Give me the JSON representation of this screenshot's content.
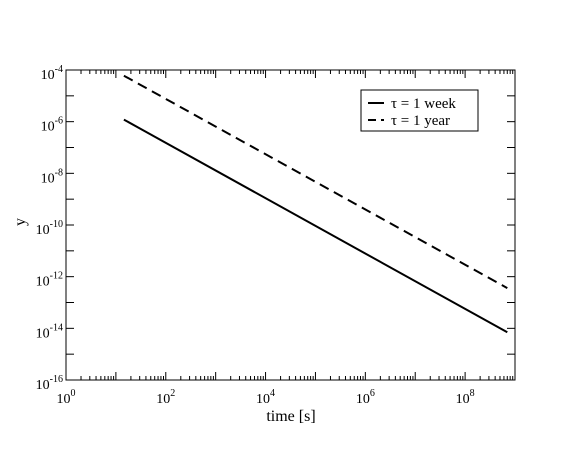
{
  "chart_data": {
    "type": "line",
    "title": "",
    "xlabel": "time [s]",
    "ylabel": "y",
    "xscale": "log",
    "yscale": "log",
    "xlim": [
      1,
      1000000000
    ],
    "ylim": [
      1e-16,
      0.0001
    ],
    "grid": false,
    "legend_position": "top-right",
    "xticks": [
      {
        "base": "10",
        "exp": "0",
        "value": 1
      },
      {
        "base": "10",
        "exp": "2",
        "value": 100
      },
      {
        "base": "10",
        "exp": "4",
        "value": 10000
      },
      {
        "base": "10",
        "exp": "6",
        "value": 1000000
      },
      {
        "base": "10",
        "exp": "8",
        "value": 100000000
      }
    ],
    "yticks": [
      {
        "base": "10",
        "exp": "-4",
        "value": 0.0001
      },
      {
        "base": "10",
        "exp": "-6",
        "value": 1e-06
      },
      {
        "base": "10",
        "exp": "-8",
        "value": 1e-08
      },
      {
        "base": "10",
        "exp": "-10",
        "value": 1e-10
      },
      {
        "base": "10",
        "exp": "-12",
        "value": 1e-12
      },
      {
        "base": "10",
        "exp": "-14",
        "value": 1e-14
      },
      {
        "base": "10",
        "exp": "-16",
        "value": 1e-16
      }
    ],
    "series": [
      {
        "name": "τ = 1 week",
        "style": "solid",
        "color": "#000000",
        "x": [
          14.5,
          700000000
        ],
        "y": [
          1.2e-06,
          7e-15
        ]
      },
      {
        "name": "τ = 1 year",
        "style": "dashed",
        "color": "#000000",
        "x": [
          14.5,
          700000000
        ],
        "y": [
          6e-05,
          3.6e-13
        ]
      }
    ]
  }
}
